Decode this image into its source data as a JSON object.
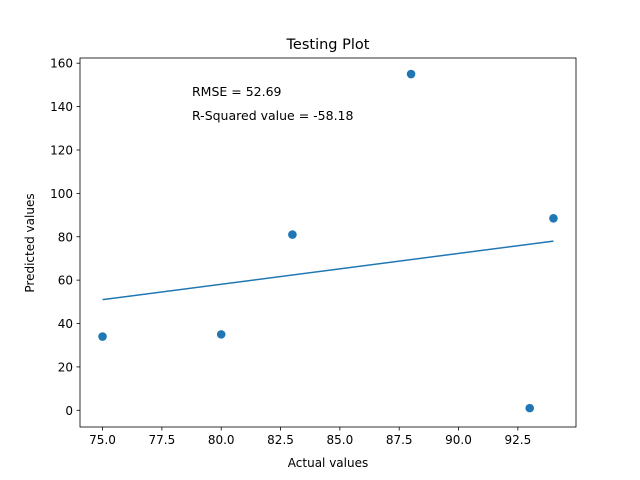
{
  "chart_data": {
    "type": "scatter",
    "title": "Testing Plot",
    "xlabel": "Actual values",
    "ylabel": "Predicted values",
    "xlim": [
      74.05,
      94.95
    ],
    "ylim": [
      -7.7,
      162.4
    ],
    "x_ticks": [
      75.0,
      77.5,
      80.0,
      82.5,
      85.0,
      87.5,
      90.0,
      92.5
    ],
    "x_tick_labels": [
      "75.0",
      "77.5",
      "80.0",
      "82.5",
      "85.0",
      "87.5",
      "90.0",
      "92.5"
    ],
    "y_ticks": [
      0,
      20,
      40,
      60,
      80,
      100,
      120,
      140,
      160
    ],
    "y_tick_labels": [
      "0",
      "20",
      "40",
      "60",
      "80",
      "100",
      "120",
      "140",
      "160"
    ],
    "grid": false,
    "points": [
      {
        "x": 75,
        "y": 34
      },
      {
        "x": 80,
        "y": 35
      },
      {
        "x": 83,
        "y": 81
      },
      {
        "x": 88,
        "y": 155
      },
      {
        "x": 93,
        "y": 1
      },
      {
        "x": 94,
        "y": 88.5
      }
    ],
    "fit_line": {
      "x": [
        75,
        94
      ],
      "y": [
        51,
        78
      ]
    },
    "annotations": [
      "RMSE = 52.69",
      "R-Squared value = -58.18"
    ],
    "color": "#1f77b4"
  }
}
